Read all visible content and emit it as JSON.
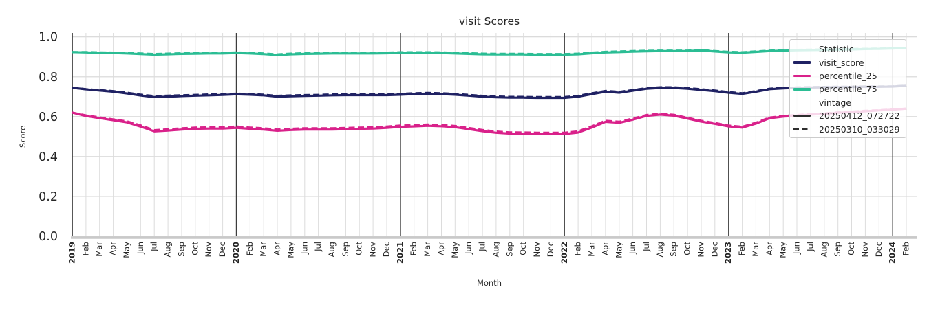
{
  "title": "visit Scores",
  "xlabel": "Month",
  "ylabel": "Score",
  "colors": {
    "visit_score": "#1f2163",
    "percentile_25": "#d9218a",
    "percentile_75": "#2bbd94",
    "vintage_swatch": "#2e2e2e",
    "grid_minor": "#dcdcdc",
    "grid_major": "#d6d6d6",
    "year_line": "#3d3d3d",
    "left_spine": "#2e2e2e",
    "bottom_spine": "#c9c9c9",
    "text": "#262626"
  },
  "legend": {
    "statistic_title": "Statistic",
    "vintage_title": "vintage",
    "statistics": [
      {
        "label": "visit_score",
        "color": "#1f2163"
      },
      {
        "label": "percentile_25",
        "color": "#d9218a"
      },
      {
        "label": "percentile_75",
        "color": "#2bbd94"
      }
    ],
    "vintages": [
      {
        "label": "20250412_072722",
        "line_style": "solid",
        "color": "#2e2e2e"
      },
      {
        "label": "20250310_033029",
        "line_style": "dashed",
        "color": "#2e2e2e"
      }
    ]
  },
  "chart_data": {
    "type": "line",
    "title": "visit Scores",
    "xlabel": "Month",
    "ylabel": "Score",
    "ylim": [
      0,
      1.02
    ],
    "y_ticks": [
      0.0,
      0.2,
      0.4,
      0.6,
      0.8,
      1.0
    ],
    "x": [
      "2019",
      "Feb",
      "Mar",
      "Apr",
      "May",
      "Jun",
      "Jul",
      "Aug",
      "Sep",
      "Oct",
      "Nov",
      "Dec",
      "2020",
      "Feb",
      "Mar",
      "Apr",
      "May",
      "Jun",
      "Jul",
      "Aug",
      "Sep",
      "Oct",
      "Nov",
      "Dec",
      "2021",
      "Feb",
      "Mar",
      "Apr",
      "May",
      "Jun",
      "Jul",
      "Aug",
      "Sep",
      "Oct",
      "Nov",
      "Dec",
      "2022",
      "Feb",
      "Mar",
      "Apr",
      "May",
      "Jun",
      "Jul",
      "Aug",
      "Sep",
      "Oct",
      "Nov",
      "Dec",
      "2023",
      "Feb",
      "Mar",
      "Apr",
      "May",
      "Jun",
      "Jul",
      "Aug",
      "Sep",
      "Oct",
      "Nov",
      "Dec",
      "2024",
      "Feb"
    ],
    "year_tick_indices": [
      0,
      12,
      24,
      36,
      48,
      60
    ],
    "series": [
      {
        "name": "visit_score",
        "vintage": "20250412_072722",
        "color": "#1f2163",
        "dash": false,
        "values": [
          0.745,
          0.737,
          0.731,
          0.725,
          0.716,
          0.706,
          0.698,
          0.7,
          0.703,
          0.705,
          0.707,
          0.709,
          0.712,
          0.71,
          0.707,
          0.7,
          0.702,
          0.704,
          0.705,
          0.707,
          0.708,
          0.708,
          0.708,
          0.708,
          0.71,
          0.713,
          0.715,
          0.713,
          0.71,
          0.705,
          0.7,
          0.697,
          0.695,
          0.695,
          0.694,
          0.694,
          0.694,
          0.7,
          0.713,
          0.725,
          0.72,
          0.73,
          0.74,
          0.744,
          0.744,
          0.74,
          0.734,
          0.728,
          0.72,
          0.714,
          0.725,
          0.738,
          0.742,
          0.744,
          0.746,
          0.747,
          0.748,
          0.749,
          0.75,
          0.75,
          0.751,
          0.755
        ]
      },
      {
        "name": "percentile_25",
        "vintage": "20250412_072722",
        "color": "#d9218a",
        "dash": false,
        "values": [
          0.62,
          0.603,
          0.592,
          0.582,
          0.571,
          0.55,
          0.526,
          0.53,
          0.535,
          0.539,
          0.54,
          0.54,
          0.544,
          0.539,
          0.535,
          0.529,
          0.533,
          0.535,
          0.535,
          0.535,
          0.537,
          0.539,
          0.54,
          0.544,
          0.549,
          0.551,
          0.554,
          0.552,
          0.547,
          0.537,
          0.527,
          0.519,
          0.515,
          0.514,
          0.513,
          0.513,
          0.513,
          0.52,
          0.545,
          0.574,
          0.569,
          0.585,
          0.604,
          0.61,
          0.605,
          0.59,
          0.575,
          0.564,
          0.551,
          0.545,
          0.565,
          0.592,
          0.6,
          0.605,
          0.61,
          0.614,
          0.619,
          0.623,
          0.627,
          0.631,
          0.635,
          0.64
        ]
      },
      {
        "name": "percentile_75",
        "vintage": "20250412_072722",
        "color": "#2bbd94",
        "dash": false,
        "values": [
          0.924,
          0.922,
          0.92,
          0.919,
          0.917,
          0.914,
          0.911,
          0.913,
          0.915,
          0.916,
          0.917,
          0.917,
          0.919,
          0.917,
          0.914,
          0.909,
          0.913,
          0.915,
          0.916,
          0.917,
          0.917,
          0.917,
          0.917,
          0.918,
          0.92,
          0.92,
          0.92,
          0.919,
          0.917,
          0.915,
          0.913,
          0.912,
          0.912,
          0.912,
          0.911,
          0.911,
          0.911,
          0.913,
          0.918,
          0.922,
          0.924,
          0.926,
          0.928,
          0.929,
          0.929,
          0.929,
          0.932,
          0.927,
          0.923,
          0.921,
          0.925,
          0.929,
          0.931,
          0.933,
          0.934,
          0.935,
          0.936,
          0.937,
          0.939,
          0.94,
          0.942,
          0.944
        ]
      },
      {
        "name": "visit_score",
        "vintage": "20250310_033029",
        "color": "#1f2163",
        "dash": true,
        "values": [
          0.745,
          0.738,
          0.733,
          0.728,
          0.72,
          0.71,
          0.703,
          0.705,
          0.707,
          0.709,
          0.711,
          0.713,
          0.715,
          0.713,
          0.71,
          0.704,
          0.706,
          0.708,
          0.709,
          0.711,
          0.712,
          0.712,
          0.712,
          0.712,
          0.714,
          0.717,
          0.719,
          0.717,
          0.714,
          0.709,
          0.704,
          0.701,
          0.699,
          0.699,
          0.698,
          0.698,
          0.698,
          0.704,
          0.717,
          0.729,
          0.724,
          0.733,
          0.743,
          0.747,
          0.747,
          0.743,
          0.737,
          0.731,
          0.723,
          0.717,
          0.728,
          0.74,
          0.744,
          0.746,
          0.748,
          0.749,
          0.75,
          0.75,
          0.751,
          0.751,
          0.752,
          0.755
        ]
      },
      {
        "name": "percentile_25",
        "vintage": "20250310_033029",
        "color": "#d9218a",
        "dash": true,
        "values": [
          0.62,
          0.606,
          0.596,
          0.586,
          0.576,
          0.556,
          0.532,
          0.536,
          0.541,
          0.545,
          0.546,
          0.546,
          0.55,
          0.545,
          0.541,
          0.535,
          0.539,
          0.541,
          0.541,
          0.541,
          0.543,
          0.545,
          0.546,
          0.55,
          0.555,
          0.557,
          0.56,
          0.558,
          0.553,
          0.543,
          0.533,
          0.525,
          0.521,
          0.52,
          0.519,
          0.519,
          0.519,
          0.526,
          0.551,
          0.579,
          0.574,
          0.59,
          0.608,
          0.614,
          0.609,
          0.594,
          0.579,
          0.568,
          0.555,
          0.549,
          0.569,
          0.595,
          0.603,
          0.608,
          0.612,
          0.616,
          0.621,
          0.625,
          0.629,
          0.632,
          0.636,
          0.64
        ]
      },
      {
        "name": "percentile_75",
        "vintage": "20250310_033029",
        "color": "#2bbd94",
        "dash": true,
        "values": [
          0.924,
          0.924,
          0.922,
          0.921,
          0.919,
          0.917,
          0.914,
          0.916,
          0.918,
          0.919,
          0.92,
          0.92,
          0.922,
          0.92,
          0.917,
          0.912,
          0.916,
          0.918,
          0.919,
          0.92,
          0.92,
          0.92,
          0.92,
          0.921,
          0.923,
          0.923,
          0.923,
          0.922,
          0.92,
          0.918,
          0.916,
          0.915,
          0.915,
          0.915,
          0.914,
          0.914,
          0.914,
          0.916,
          0.921,
          0.925,
          0.927,
          0.929,
          0.93,
          0.931,
          0.931,
          0.931,
          0.934,
          0.929,
          0.925,
          0.923,
          0.927,
          0.931,
          0.933,
          0.935,
          0.936,
          0.937,
          0.938,
          0.939,
          0.94,
          0.941,
          0.942,
          0.944
        ]
      }
    ]
  }
}
